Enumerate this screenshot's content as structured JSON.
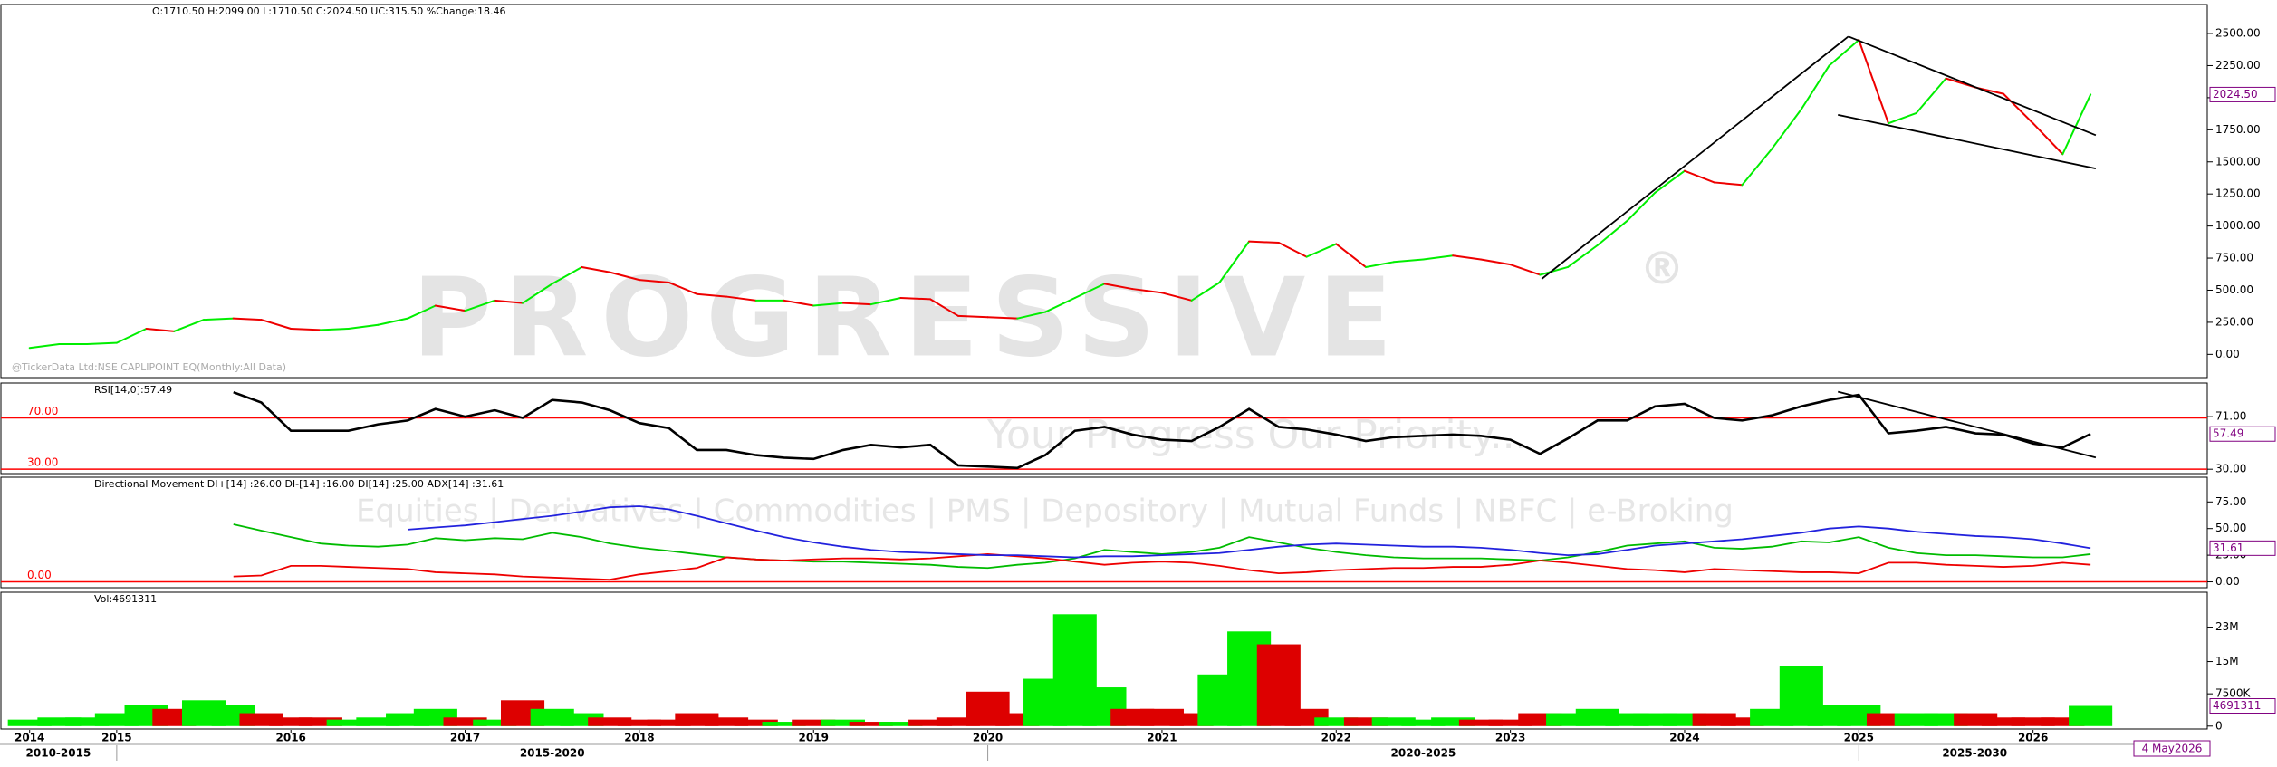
{
  "chart_data": {
    "type": "stock",
    "x": [
      2014.5,
      2014.67,
      2014.83,
      2015,
      2015.17,
      2015.33,
      2015.5,
      2015.67,
      2015.83,
      2016,
      2016.17,
      2016.33,
      2016.5,
      2016.67,
      2016.83,
      2017,
      2017.17,
      2017.33,
      2017.5,
      2017.67,
      2017.83,
      2018,
      2018.17,
      2018.33,
      2018.5,
      2018.67,
      2018.83,
      2019,
      2019.17,
      2019.33,
      2019.5,
      2019.67,
      2019.83,
      2020,
      2020.17,
      2020.33,
      2020.5,
      2020.67,
      2020.83,
      2021,
      2021.17,
      2021.33,
      2021.5,
      2021.67,
      2021.83,
      2022,
      2022.17,
      2022.33,
      2022.5,
      2022.67,
      2022.83,
      2023,
      2023.17,
      2023.33,
      2023.5,
      2023.67,
      2023.83,
      2024,
      2024.17,
      2024.33,
      2024.5,
      2024.67,
      2024.83,
      2025,
      2025.17,
      2025.33,
      2025.5,
      2025.67,
      2025.83,
      2026,
      2026.17,
      2026.33
    ],
    "xlim": [
      2014.33,
      2027
    ],
    "xticks": [
      {
        "value": 2014.5,
        "label": "2014"
      },
      2015,
      2016,
      2017,
      2018,
      2019,
      2020,
      2021,
      2022,
      2023,
      2024,
      2025,
      2026
    ],
    "periods": [
      {
        "label": "2010-2015",
        "from": 2010,
        "to": 2015
      },
      {
        "label": "2015-2020",
        "from": 2015,
        "to": 2020
      },
      {
        "label": "2020-2025",
        "from": 2020,
        "to": 2025
      },
      {
        "label": "2025-2030",
        "from": 2025,
        "to": 2030
      }
    ],
    "last_date": "4 May2026",
    "panels": [
      {
        "type": "updown_line",
        "title": "O:1710.50  H:2099.00  L:1710.50  C:2024.50  UC:315.50  %Change:18.46",
        "values": [
          50,
          80,
          80,
          90,
          200,
          180,
          270,
          280,
          270,
          200,
          190,
          200,
          230,
          280,
          380,
          340,
          420,
          400,
          550,
          680,
          640,
          580,
          560,
          470,
          450,
          420,
          420,
          380,
          400,
          390,
          440,
          430,
          300,
          290,
          280,
          330,
          440,
          550,
          510,
          480,
          420,
          560,
          880,
          870,
          760,
          860,
          680,
          720,
          740,
          770,
          740,
          700,
          620,
          680,
          850,
          1040,
          1260,
          1430,
          1340,
          1320,
          1600,
          1910,
          2250,
          2450,
          1800,
          1880,
          2150,
          2080,
          2030,
          1800,
          1560,
          2024.5
        ],
        "up_color": "#00ee00",
        "down_color": "#ee0000",
        "ylim": [
          -181,
          2726
        ],
        "yticks": [
          {
            "value": 2500,
            "label": "2500.00"
          },
          {
            "value": 2250,
            "label": "2250.00"
          },
          {
            "value": 2000,
            "label": "2000.00"
          },
          {
            "value": 1750,
            "label": "1750.00"
          },
          {
            "value": 1500,
            "label": "1500.00"
          },
          {
            "value": 1250,
            "label": "1250.00"
          },
          {
            "value": 1000,
            "label": "1000.00"
          },
          {
            "value": 750,
            "label": "750.00"
          },
          {
            "value": 500,
            "label": "500.00"
          },
          {
            "value": 250,
            "label": "250.00"
          },
          {
            "value": 0,
            "label": "0.00"
          }
        ],
        "trendlines": [
          {
            "x": [
              2023.18,
              2024.94
            ],
            "y": [
              588,
              2477
            ]
          },
          {
            "x": [
              2024.94,
              2026.36
            ],
            "y": [
              2477,
              1708
            ]
          },
          {
            "x": [
              2024.88,
              2026.36
            ],
            "y": [
              1866,
              1448
            ]
          }
        ],
        "trend_color": "#000000",
        "last_label": "2024.50"
      },
      {
        "type": "line",
        "title": "RSI[14,0]:57.49",
        "series": [
          {
            "color": "#000000",
            "values": [
              null,
              null,
              null,
              null,
              null,
              null,
              null,
              90,
              82,
              60,
              60,
              60,
              65,
              68,
              77,
              71,
              76,
              70,
              84,
              82,
              76,
              66,
              62,
              45,
              45,
              41,
              39,
              38,
              45,
              49,
              47,
              49,
              33,
              32,
              31,
              41,
              60,
              63,
              57,
              53,
              52,
              63,
              77,
              63,
              61,
              57,
              52,
              55,
              56,
              57,
              56,
              53,
              42,
              54,
              68,
              68,
              79,
              81,
              70,
              68,
              72,
              79,
              84,
              88,
              58,
              60,
              63,
              58,
              57,
              50,
              47,
              57.49
            ]
          }
        ],
        "ylim": [
          26.6,
          97.2
        ],
        "yticks": [
          {
            "value": 71,
            "label": "71.00"
          },
          {
            "value": 30,
            "label": "30.00"
          }
        ],
        "levels": [
          {
            "value": 70,
            "label": "70.00"
          },
          {
            "value": 30,
            "label": "30.00"
          }
        ],
        "level_color": "#ff0000",
        "trendlines": [
          {
            "x": [
              2024.88,
              2026.36
            ],
            "y": [
              90.4,
              39.1
            ]
          }
        ],
        "trend_color": "#000000",
        "last_label": "57.49"
      },
      {
        "type": "line",
        "title": "Directional Movement  DI+[14] :26.00 DI-[14] :16.00 DI[14] :25.00 ADX[14] :31.61",
        "series": [
          {
            "color": "#00bb00",
            "values": [
              null,
              null,
              null,
              null,
              null,
              null,
              null,
              54,
              48,
              42,
              36,
              34,
              33,
              35,
              41,
              39,
              41,
              40,
              46,
              42,
              36,
              32,
              29,
              26,
              23,
              21,
              20,
              19,
              19,
              18,
              17,
              16,
              14,
              13,
              16,
              18,
              22,
              30,
              28,
              26,
              28,
              32,
              42,
              37,
              32,
              28,
              25,
              23,
              22,
              22,
              22,
              21,
              20,
              23,
              28,
              34,
              36,
              38,
              32,
              31,
              33,
              38,
              37,
              42,
              32,
              27,
              25,
              25,
              24,
              23,
              23,
              26
            ]
          },
          {
            "color": "#ee0000",
            "values": [
              null,
              null,
              null,
              null,
              null,
              null,
              null,
              5,
              6,
              15,
              15,
              14,
              13,
              12,
              9,
              8,
              7,
              5,
              4,
              3,
              2,
              7,
              10,
              13,
              23,
              21,
              20,
              21,
              22,
              22,
              21,
              22,
              24,
              26,
              24,
              22,
              19,
              16,
              18,
              19,
              18,
              15,
              11,
              8,
              9,
              11,
              12,
              13,
              13,
              14,
              14,
              16,
              20,
              18,
              15,
              12,
              11,
              9,
              12,
              11,
              10,
              9,
              9,
              8,
              18,
              18,
              16,
              15,
              14,
              15,
              18,
              16
            ]
          },
          {
            "color": "#2222dd",
            "values": [
              null,
              null,
              null,
              null,
              null,
              null,
              null,
              null,
              null,
              null,
              null,
              null,
              null,
              49,
              51,
              53,
              56,
              59,
              62,
              66,
              70,
              71,
              68,
              62,
              55,
              48,
              42,
              37,
              33,
              30,
              28,
              27,
              26,
              25,
              25,
              24,
              23,
              24,
              24,
              25,
              26,
              27,
              30,
              33,
              35,
              36,
              35,
              34,
              33,
              33,
              32,
              30,
              27,
              25,
              26,
              30,
              34,
              36,
              38,
              40,
              43,
              46,
              50,
              52,
              50,
              47,
              45,
              43,
              42,
              40,
              36,
              31.61
            ]
          }
        ],
        "ylim": [
          -5.5,
          98.2
        ],
        "yticks": [
          {
            "value": 75,
            "label": "75.00"
          },
          {
            "value": 50,
            "label": "50.00"
          },
          {
            "value": 25,
            "label": "25.00"
          },
          {
            "value": 0,
            "label": "0.00"
          }
        ],
        "levels": [
          {
            "value": 0,
            "label": "0.00"
          }
        ],
        "level_color": "#ff0000",
        "last_label": "31.61"
      },
      {
        "type": "bar",
        "title": "Vol:4691311",
        "values": [
          1500000,
          2000000,
          2000000,
          3000000,
          5000000,
          4000000,
          6000000,
          5000000,
          3000000,
          2000000,
          2000000,
          1500000,
          2000000,
          3000000,
          4000000,
          2000000,
          1500000,
          6000000,
          4000000,
          3000000,
          2000000,
          1500000,
          1500000,
          3000000,
          2000000,
          1500000,
          1000000,
          1500000,
          1500000,
          1000000,
          1000000,
          1500000,
          2000000,
          8000000,
          3000000,
          11000000,
          26000000,
          9000000,
          4000000,
          4000000,
          3000000,
          12000000,
          22000000,
          19000000,
          4000000,
          2000000,
          2000000,
          2000000,
          1500000,
          2000000,
          1500000,
          1500000,
          3000000,
          3000000,
          4000000,
          3000000,
          3000000,
          3000000,
          3000000,
          2000000,
          4000000,
          14000000,
          5000000,
          5000000,
          3000000,
          3000000,
          3000000,
          3000000,
          2000000,
          2000000,
          2000000,
          4691311
        ],
        "up_color": "#00ee00",
        "down_color": "#dd0000",
        "ylim": [
          -676000,
          31117000
        ],
        "yticks": [
          {
            "value": 23000000,
            "label": "23M"
          },
          {
            "value": 15000000,
            "label": "15M"
          },
          {
            "value": 7500000,
            "label": "7500K"
          },
          0
        ],
        "last_label": "4691311"
      }
    ]
  },
  "watermark": {
    "brand": "PROGRESSIVE",
    "mark": "®",
    "tagline": "Your Progress Our Priority...",
    "services": "Equities | Derivatives | Commodities | PMS | Depository | Mutual Funds | NBFC | e-Broking",
    "source": "@TickerData Ltd:NSE CAPLIPOINT EQ(Monthly:All Data)"
  }
}
